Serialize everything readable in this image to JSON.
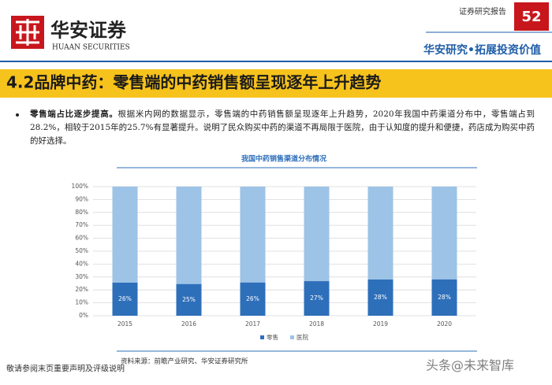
{
  "header": {
    "company": "华安证券",
    "company_en": "HUAAN SECURITIES",
    "report_type": "证券研究报告",
    "page_number": "52",
    "slogan": "华安研究•拓展投资价值"
  },
  "slide_title": "4.2品牌中药：零售端的中药销售额呈现逐年上升趋势",
  "bullet": {
    "lead": "零售端占比逐步提高。",
    "text": "根据米内网的数据显示，零售端的中药销售额呈现逐年上升趋势，2020年我国中药渠道分布中，零售端占到28.2%，相较于2015年的25.7%有显著提升。说明了民众购买中药的渠道不再局限于医院，由于认知度的提升和便捷，药店成为购买中药的好选择。"
  },
  "chart_data": {
    "type": "stacked_bar",
    "title": "我国中药销售渠道分布情况",
    "categories": [
      "2015",
      "2016",
      "2017",
      "2018",
      "2019",
      "2020"
    ],
    "series": [
      {
        "name": "零售",
        "color": "#2e6fba",
        "values": [
          25.7,
          24.6,
          25.8,
          26.8,
          28.1,
          28.2
        ],
        "value_labels": [
          "26%",
          "25%",
          "26%",
          "27%",
          "28%",
          "28%"
        ]
      },
      {
        "name": "医院",
        "color": "#9dc3e6",
        "values": [
          74.3,
          75.4,
          74.2,
          73.2,
          71.9,
          71.8
        ]
      }
    ],
    "ylim": [
      0,
      100
    ],
    "yticks": [
      {
        "value": 0,
        "label": "0%"
      },
      {
        "value": 10,
        "label": "10%"
      },
      {
        "value": 20,
        "label": "20%"
      },
      {
        "value": 30,
        "label": "30%"
      },
      {
        "value": 40,
        "label": "40%"
      },
      {
        "value": 50,
        "label": "50%"
      },
      {
        "value": 60,
        "label": "60%"
      },
      {
        "value": 70,
        "label": "70%"
      },
      {
        "value": 80,
        "label": "80%"
      },
      {
        "value": 90,
        "label": "90%"
      },
      {
        "value": 100,
        "label": "100%"
      }
    ],
    "grid": true,
    "legend": "bottom",
    "source": "资料来源：前瞻产业研究、华安证券研究所"
  },
  "footer": {
    "disclaimer": "敬请参阅末页重要声明及评级说明",
    "watermark": "头条@未来智库"
  }
}
